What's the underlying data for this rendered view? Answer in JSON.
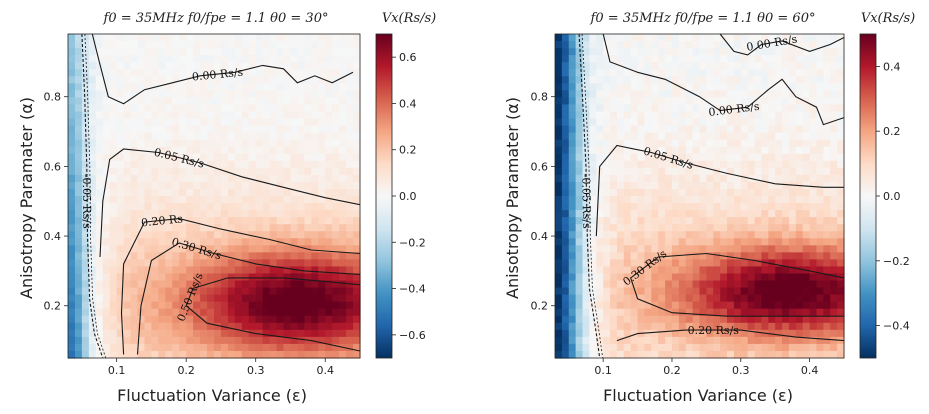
{
  "chart_data": [
    {
      "type": "heatmap",
      "title": "f0 = 35MHz    f0/fpe = 1.1    θ0 = 30°",
      "colorbar_label": "Vx(Rs/s)",
      "xlabel": "Fluctuation Variance (ε)",
      "ylabel": "Anisotropy Paramater (α)",
      "xlim": [
        0.03,
        0.45
      ],
      "ylim": [
        0.05,
        0.98
      ],
      "xticks": [
        "0.1",
        "0.2",
        "0.3",
        "0.4"
      ],
      "yticks": [
        "0.2",
        "0.4",
        "0.6",
        "0.8"
      ],
      "cbar_range": [
        -0.7,
        0.7
      ],
      "cbar_ticks": [
        "0.6",
        "0.4",
        "0.2",
        "0.0",
        "−0.2",
        "−0.4",
        "−0.6"
      ],
      "colormap": "RdBu_r",
      "field": {
        "peak_eps": 0.36,
        "peak_alpha": 0.21,
        "peak_value": 0.7,
        "negative_edge": -0.5
      },
      "contours": [
        {
          "label": "0.00 Rs/s",
          "style": "solid",
          "points": [
            [
              0.065,
              0.98
            ],
            [
              0.075,
              0.9
            ],
            [
              0.088,
              0.8
            ],
            [
              0.11,
              0.78
            ],
            [
              0.14,
              0.82
            ],
            [
              0.18,
              0.84
            ],
            [
              0.22,
              0.86
            ],
            [
              0.27,
              0.87
            ],
            [
              0.31,
              0.89
            ],
            [
              0.34,
              0.88
            ],
            [
              0.36,
              0.84
            ],
            [
              0.385,
              0.86
            ],
            [
              0.41,
              0.84
            ],
            [
              0.44,
              0.87
            ]
          ]
        },
        {
          "label": "0.05 Rs/s",
          "style": "solid",
          "points": [
            [
              0.076,
              0.34
            ],
            [
              0.08,
              0.5
            ],
            [
              0.09,
              0.62
            ],
            [
              0.11,
              0.65
            ],
            [
              0.16,
              0.64
            ],
            [
              0.22,
              0.61
            ],
            [
              0.28,
              0.57
            ],
            [
              0.34,
              0.54
            ],
            [
              0.4,
              0.51
            ],
            [
              0.45,
              0.49
            ]
          ]
        },
        {
          "label": "0.20 Rs",
          "style": "solid",
          "points": [
            [
              0.11,
              0.06
            ],
            [
              0.107,
              0.18
            ],
            [
              0.11,
              0.32
            ],
            [
              0.14,
              0.44
            ],
            [
              0.19,
              0.45
            ],
            [
              0.25,
              0.42
            ],
            [
              0.32,
              0.39
            ],
            [
              0.38,
              0.36
            ],
            [
              0.45,
              0.35
            ]
          ]
        },
        {
          "label": "0.30 Rs/s",
          "style": "solid",
          "points": [
            [
              0.13,
              0.06
            ],
            [
              0.135,
              0.2
            ],
            [
              0.15,
              0.33
            ],
            [
              0.19,
              0.38
            ],
            [
              0.24,
              0.35
            ],
            [
              0.3,
              0.32
            ],
            [
              0.37,
              0.3
            ],
            [
              0.45,
              0.29
            ]
          ]
        },
        {
          "label": "0.50 Rs/s",
          "style": "solid",
          "points": [
            [
              0.45,
              0.07
            ],
            [
              0.38,
              0.1
            ],
            [
              0.3,
              0.12
            ],
            [
              0.23,
              0.15
            ],
            [
              0.2,
              0.2
            ],
            [
              0.21,
              0.25
            ],
            [
              0.26,
              0.28
            ],
            [
              0.34,
              0.28
            ],
            [
              0.4,
              0.27
            ],
            [
              0.45,
              0.26
            ]
          ]
        },
        {
          "label": "-0.05 Rs/s",
          "style": "dashed",
          "points": [
            [
              0.05,
              0.98
            ],
            [
              0.054,
              0.8
            ],
            [
              0.057,
              0.6
            ],
            [
              0.058,
              0.4
            ],
            [
              0.061,
              0.22
            ],
            [
              0.068,
              0.12
            ],
            [
              0.08,
              0.05
            ]
          ]
        }
      ]
    },
    {
      "type": "heatmap",
      "title": "f0 = 35MHz    f0/fpe = 1.1    θ0 = 60°",
      "colorbar_label": "Vx(Rs/s)",
      "xlabel": "Fluctuation Variance (ε)",
      "ylabel": "Anisotropy Paramater (α)",
      "xlim": [
        0.03,
        0.45
      ],
      "ylim": [
        0.05,
        0.98
      ],
      "xticks": [
        "0.1",
        "0.2",
        "0.3",
        "0.4"
      ],
      "yticks": [
        "0.2",
        "0.4",
        "0.6",
        "0.8"
      ],
      "cbar_range": [
        -0.5,
        0.5
      ],
      "cbar_ticks": [
        "0.4",
        "0.2",
        "0.0",
        "−0.2",
        "−0.4"
      ],
      "colormap": "RdBu_r",
      "field": {
        "peak_eps": 0.37,
        "peak_alpha": 0.24,
        "peak_value": 0.5,
        "negative_edge": -0.5
      },
      "contours": [
        {
          "label": "0.00 Rs/s",
          "style": "solid",
          "points": [
            [
              0.27,
              0.98
            ],
            [
              0.29,
              0.93
            ],
            [
              0.31,
              0.92
            ],
            [
              0.33,
              0.95
            ],
            [
              0.36,
              0.96
            ],
            [
              0.4,
              0.93
            ],
            [
              0.43,
              0.95
            ],
            [
              0.45,
              0.97
            ]
          ]
        },
        {
          "label": "0.00 Rs/s",
          "style": "solid",
          "points": [
            [
              0.1,
              0.98
            ],
            [
              0.11,
              0.9
            ],
            [
              0.15,
              0.87
            ],
            [
              0.19,
              0.85
            ],
            [
              0.24,
              0.8
            ],
            [
              0.27,
              0.76
            ],
            [
              0.31,
              0.77
            ],
            [
              0.34,
              0.82
            ],
            [
              0.36,
              0.85
            ],
            [
              0.38,
              0.8
            ],
            [
              0.41,
              0.77
            ],
            [
              0.42,
              0.72
            ],
            [
              0.45,
              0.74
            ]
          ]
        },
        {
          "label": "0.05 Rs/s",
          "style": "solid",
          "points": [
            [
              0.09,
              0.4
            ],
            [
              0.095,
              0.6
            ],
            [
              0.12,
              0.66
            ],
            [
              0.17,
              0.64
            ],
            [
              0.22,
              0.61
            ],
            [
              0.28,
              0.58
            ],
            [
              0.35,
              0.55
            ],
            [
              0.42,
              0.54
            ],
            [
              0.45,
              0.54
            ]
          ]
        },
        {
          "label": "0.30 Rs/s",
          "style": "solid",
          "points": [
            [
              0.45,
              0.28
            ],
            [
              0.4,
              0.3
            ],
            [
              0.32,
              0.33
            ],
            [
              0.25,
              0.35
            ],
            [
              0.18,
              0.34
            ],
            [
              0.14,
              0.28
            ],
            [
              0.15,
              0.22
            ],
            [
              0.2,
              0.18
            ],
            [
              0.28,
              0.17
            ],
            [
              0.36,
              0.17
            ],
            [
              0.45,
              0.17
            ]
          ]
        },
        {
          "label": "0.20 Rs/s",
          "style": "solid",
          "points": [
            [
              0.12,
              0.1
            ],
            [
              0.15,
              0.12
            ],
            [
              0.22,
              0.13
            ],
            [
              0.3,
              0.13
            ],
            [
              0.38,
              0.11
            ],
            [
              0.45,
              0.1
            ]
          ]
        },
        {
          "label": "-0.05 Rs/s",
          "style": "dashed",
          "points": [
            [
              0.065,
              0.98
            ],
            [
              0.07,
              0.8
            ],
            [
              0.075,
              0.6
            ],
            [
              0.077,
              0.4
            ],
            [
              0.08,
              0.25
            ],
            [
              0.09,
              0.12
            ],
            [
              0.095,
              0.05
            ]
          ]
        }
      ]
    }
  ]
}
